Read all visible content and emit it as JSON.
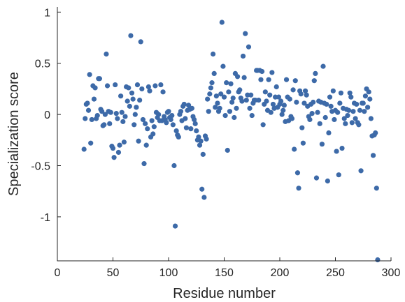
{
  "chart_data": {
    "type": "scatter",
    "xlabel": "Residue number",
    "ylabel": "Specialization score",
    "xlim": [
      0,
      300
    ],
    "ylim": [
      -1.43,
      1.05
    ],
    "xticks": [
      0,
      50,
      100,
      150,
      200,
      250,
      300
    ],
    "yticks": [
      -1,
      -0.5,
      0,
      0.5,
      1
    ],
    "xtick_labels": [
      "0",
      "50",
      "100",
      "150",
      "200",
      "250",
      "300"
    ],
    "ytick_labels": [
      "-1",
      "-0.5",
      "0",
      "0.5",
      "1"
    ],
    "grid": false,
    "legend": "none",
    "marker_color": "#3d6aa8",
    "points": [
      [
        24,
        -0.34
      ],
      [
        25,
        -0.04
      ],
      [
        26,
        0.1
      ],
      [
        27,
        0.11
      ],
      [
        28,
        0.04
      ],
      [
        29,
        0.39
      ],
      [
        30,
        -0.28
      ],
      [
        31,
        -0.05
      ],
      [
        32,
        0.28
      ],
      [
        33,
        0.15
      ],
      [
        34,
        0.26
      ],
      [
        35,
        -0.04
      ],
      [
        36,
        -0.01
      ],
      [
        37,
        0.35
      ],
      [
        38,
        0.35
      ],
      [
        39,
        0.05
      ],
      [
        40,
        0.03
      ],
      [
        41,
        -0.11
      ],
      [
        42,
        -0.1
      ],
      [
        43,
        0.0
      ],
      [
        44,
        0.59
      ],
      [
        45,
        0.28
      ],
      [
        46,
        0.03
      ],
      [
        47,
        -0.09
      ],
      [
        48,
        0.02
      ],
      [
        49,
        -0.31
      ],
      [
        50,
        -0.33
      ],
      [
        51,
        -0.42
      ],
      [
        52,
        0.29
      ],
      [
        53,
        0.01
      ],
      [
        54,
        -0.04
      ],
      [
        55,
        -0.37
      ],
      [
        56,
        -0.3
      ],
      [
        57,
        0.18
      ],
      [
        58,
        0.02
      ],
      [
        59,
        -0.07
      ],
      [
        60,
        -0.27
      ],
      [
        61,
        -0.02
      ],
      [
        62,
        0.27
      ],
      [
        63,
        0.13
      ],
      [
        64,
        0.26
      ],
      [
        65,
        0.08
      ],
      [
        66,
        0.77
      ],
      [
        67,
        0.21
      ],
      [
        68,
        0.15
      ],
      [
        69,
        -0.1
      ],
      [
        70,
        0.0
      ],
      [
        71,
        0.07
      ],
      [
        72,
        0.29
      ],
      [
        73,
        -0.26
      ],
      [
        74,
        0.14
      ],
      [
        75,
        0.71
      ],
      [
        76,
        0.25
      ],
      [
        77,
        -0.05
      ],
      [
        78,
        -0.48
      ],
      [
        79,
        -0.09
      ],
      [
        80,
        -0.3
      ],
      [
        81,
        -0.14
      ],
      [
        82,
        0.27
      ],
      [
        83,
        0.23
      ],
      [
        84,
        -0.22
      ],
      [
        85,
        -0.06
      ],
      [
        86,
        -0.19
      ],
      [
        87,
        -0.12
      ],
      [
        88,
        0.28
      ],
      [
        89,
        0.02
      ],
      [
        90,
        -0.03
      ],
      [
        91,
        0.0
      ],
      [
        92,
        -0.06
      ],
      [
        93,
        0.29
      ],
      [
        94,
        -0.06
      ],
      [
        95,
        0.22
      ],
      [
        96,
        -0.02
      ],
      [
        97,
        -0.05
      ],
      [
        98,
        -0.08
      ],
      [
        99,
        0.02
      ],
      [
        100,
        0.03
      ],
      [
        101,
        -0.03
      ],
      [
        102,
        -0.05
      ],
      [
        103,
        -0.01
      ],
      [
        104,
        -0.1
      ],
      [
        105,
        -0.5
      ],
      [
        106,
        -1.09
      ],
      [
        107,
        -0.16
      ],
      [
        108,
        -0.2
      ],
      [
        109,
        -0.22
      ],
      [
        110,
        0.0
      ],
      [
        111,
        0.03
      ],
      [
        112,
        -0.06
      ],
      [
        113,
        0.08
      ],
      [
        114,
        0.1
      ],
      [
        115,
        -0.04
      ],
      [
        116,
        -0.13
      ],
      [
        117,
        0.04
      ],
      [
        118,
        0.09
      ],
      [
        119,
        0.05
      ],
      [
        120,
        -0.14
      ],
      [
        121,
        0.06
      ],
      [
        122,
        -0.02
      ],
      [
        123,
        -0.05
      ],
      [
        124,
        -0.09
      ],
      [
        125,
        -0.16
      ],
      [
        126,
        -0.25
      ],
      [
        127,
        -0.22
      ],
      [
        128,
        -0.3
      ],
      [
        129,
        -0.26
      ],
      [
        130,
        -0.73
      ],
      [
        131,
        -0.39
      ],
      [
        132,
        -0.81
      ],
      [
        133,
        -0.21
      ],
      [
        134,
        -0.24
      ],
      [
        135,
        0.15
      ],
      [
        136,
        0.03
      ],
      [
        137,
        0.2
      ],
      [
        138,
        0.26
      ],
      [
        139,
        0.31
      ],
      [
        140,
        0.59
      ],
      [
        141,
        0.4
      ],
      [
        142,
        0.07
      ],
      [
        143,
        0.18
      ],
      [
        144,
        0.11
      ],
      [
        145,
        0.03
      ],
      [
        146,
        0.06
      ],
      [
        147,
        0.2
      ],
      [
        148,
        0.9
      ],
      [
        149,
        0.47
      ],
      [
        150,
        0.17
      ],
      [
        151,
        -0.01
      ],
      [
        152,
        0.31
      ],
      [
        153,
        -0.35
      ],
      [
        154,
        0.22
      ],
      [
        155,
        0.03
      ],
      [
        156,
        0.3
      ],
      [
        157,
        0.12
      ],
      [
        158,
        0.16
      ],
      [
        159,
        -0.03
      ],
      [
        160,
        0.4
      ],
      [
        161,
        0.06
      ],
      [
        162,
        0.37
      ],
      [
        163,
        0.22
      ],
      [
        164,
        0.24
      ],
      [
        165,
        0.16
      ],
      [
        166,
        0.13
      ],
      [
        167,
        0.57
      ],
      [
        168,
        0.36
      ],
      [
        169,
        0.79
      ],
      [
        170,
        0.14
      ],
      [
        171,
        0.19
      ],
      [
        172,
        0.66
      ],
      [
        173,
        0.06
      ],
      [
        174,
        0.19
      ],
      [
        175,
        -0.01
      ],
      [
        176,
        0.11
      ],
      [
        177,
        0.14
      ],
      [
        178,
        0.14
      ],
      [
        179,
        0.43
      ],
      [
        180,
        0.43
      ],
      [
        181,
        0.14
      ],
      [
        182,
        0.43
      ],
      [
        183,
        0.34
      ],
      [
        184,
        0.42
      ],
      [
        185,
        -0.1
      ],
      [
        186,
        0.1
      ],
      [
        187,
        0.22
      ],
      [
        188,
        0.13
      ],
      [
        189,
        0.04
      ],
      [
        190,
        0.34
      ],
      [
        191,
        0.19
      ],
      [
        192,
        0.02
      ],
      [
        193,
        0.41
      ],
      [
        194,
        0.1
      ],
      [
        195,
        0.06
      ],
      [
        196,
        0.17
      ],
      [
        197,
        0.27
      ],
      [
        198,
        0.07
      ],
      [
        199,
        0.17
      ],
      [
        200,
        0.1
      ],
      [
        201,
        0.13
      ],
      [
        202,
        0.0
      ],
      [
        203,
        0.04
      ],
      [
        204,
        0.09
      ],
      [
        205,
        -0.07
      ],
      [
        206,
        0.34
      ],
      [
        207,
        0.17
      ],
      [
        208,
        -0.06
      ],
      [
        209,
        0.15
      ],
      [
        210,
        -0.02
      ],
      [
        211,
        -0.04
      ],
      [
        212,
        0.24
      ],
      [
        213,
        -0.34
      ],
      [
        214,
        0.33
      ],
      [
        215,
        0.12
      ],
      [
        216,
        -0.57
      ],
      [
        217,
        -0.72
      ],
      [
        218,
        0.23
      ],
      [
        219,
        0.2
      ],
      [
        220,
        -0.13
      ],
      [
        221,
        -0.28
      ],
      [
        222,
        0.11
      ],
      [
        223,
        0.23
      ],
      [
        224,
        0.19
      ],
      [
        225,
        0.08
      ],
      [
        226,
        -0.02
      ],
      [
        227,
        -0.05
      ],
      [
        228,
        0.1
      ],
      [
        229,
        0.01
      ],
      [
        230,
        0.12
      ],
      [
        231,
        0.33
      ],
      [
        232,
        0.4
      ],
      [
        233,
        -0.62
      ],
      [
        234,
        0.02
      ],
      [
        235,
        0.13
      ],
      [
        236,
        -0.09
      ],
      [
        237,
        0.12
      ],
      [
        238,
        -0.29
      ],
      [
        239,
        0.47
      ],
      [
        240,
        0.11
      ],
      [
        241,
        -0.03
      ],
      [
        242,
        0.1
      ],
      [
        243,
        -0.65
      ],
      [
        244,
        -0.18
      ],
      [
        245,
        0.17
      ],
      [
        246,
        0.08
      ],
      [
        247,
        0.03
      ],
      [
        248,
        0.23
      ],
      [
        249,
        -0.05
      ],
      [
        250,
        0.04
      ],
      [
        251,
        -0.36
      ],
      [
        252,
        0.02
      ],
      [
        253,
        -0.59
      ],
      [
        254,
        0.11
      ],
      [
        255,
        0.21
      ],
      [
        256,
        -0.33
      ],
      [
        257,
        0.06
      ],
      [
        258,
        -0.04
      ],
      [
        259,
        -0.09
      ],
      [
        260,
        0.05
      ],
      [
        261,
        -0.01
      ],
      [
        262,
        0.04
      ],
      [
        263,
        0.21
      ],
      [
        264,
        0.17
      ],
      [
        265,
        -0.08
      ],
      [
        266,
        0.03
      ],
      [
        267,
        0.11
      ],
      [
        268,
        -0.04
      ],
      [
        269,
        0.1
      ],
      [
        270,
        -0.08
      ],
      [
        271,
        -0.1
      ],
      [
        272,
        0.04
      ],
      [
        273,
        -0.55
      ],
      [
        274,
        0.11
      ],
      [
        275,
        0.11
      ],
      [
        276,
        0.03
      ],
      [
        277,
        0.18
      ],
      [
        278,
        0.25
      ],
      [
        279,
        0.07
      ],
      [
        280,
        0.22
      ],
      [
        281,
        0.15
      ],
      [
        282,
        -0.04
      ],
      [
        283,
        -0.21
      ],
      [
        284,
        -0.4
      ],
      [
        285,
        -0.2
      ],
      [
        286,
        -0.18
      ],
      [
        287,
        -0.72
      ],
      [
        288,
        -1.42
      ]
    ]
  }
}
